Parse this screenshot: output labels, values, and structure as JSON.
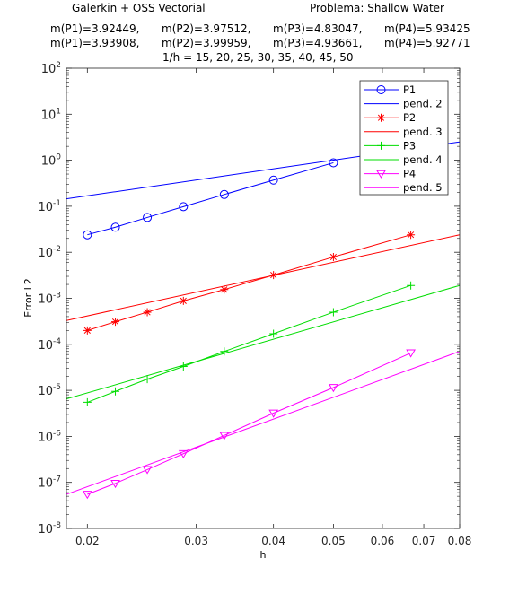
{
  "header": {
    "line1_left": "Galerkin + OSS  Vectorial",
    "line1_right": "Problema: Shallow Water",
    "line2": [
      "m(P1)=3.92449,",
      "m(P2)=3.97512,",
      "m(P3)=4.83047,",
      "m(P4)=5.93425"
    ],
    "line3": [
      "m(P1)=3.93908,",
      "m(P2)=3.99959,",
      "m(P3)=4.93661,",
      "m(P4)=5.92771"
    ],
    "line4": "1/h = 15, 20, 25, 30, 35, 40, 45, 50"
  },
  "chart_data": {
    "type": "line",
    "xscale": "log",
    "yscale": "log",
    "xlabel": "h",
    "ylabel": "Error L2",
    "xlim": [
      0.0185,
      0.08
    ],
    "ylim": [
      1e-08,
      100
    ],
    "xticks": [
      0.02,
      0.03,
      0.04,
      0.05,
      0.06,
      0.07,
      0.08
    ],
    "xtick_labels": [
      "0.02",
      "0.03",
      "0.04",
      "0.05",
      "0.06",
      "0.07",
      "0.08"
    ],
    "yticks": [
      -8,
      -7,
      -6,
      -5,
      -4,
      -3,
      -2,
      -1,
      0,
      1,
      2
    ],
    "grid": false,
    "legend_position": "top-right",
    "series": [
      {
        "name": "P1",
        "color": "#0000ff",
        "marker": "circle",
        "x": [
          0.02,
          0.0222,
          0.025,
          0.0286,
          0.0333,
          0.04,
          0.05
        ],
        "y": [
          0.024,
          0.035,
          0.057,
          0.098,
          0.18,
          0.37,
          0.88
        ]
      },
      {
        "name": "pend. 2",
        "color": "#0000ff",
        "marker": "none",
        "x": [
          0.0185,
          0.08
        ],
        "y": [
          0.145,
          2.5
        ]
      },
      {
        "name": "P2",
        "color": "#ff0000",
        "marker": "asterisk",
        "x": [
          0.02,
          0.0222,
          0.025,
          0.0286,
          0.0333,
          0.04,
          0.05,
          0.0667
        ],
        "y": [
          0.0002,
          0.00031,
          0.0005,
          0.00088,
          0.00155,
          0.0032,
          0.0079,
          0.024
        ]
      },
      {
        "name": "pend. 3",
        "color": "#ff0000",
        "marker": "none",
        "x": [
          0.0185,
          0.08
        ],
        "y": [
          0.00033,
          0.024
        ]
      },
      {
        "name": "P3",
        "color": "#00dd00",
        "marker": "plus",
        "x": [
          0.02,
          0.0222,
          0.025,
          0.0286,
          0.0333,
          0.04,
          0.05,
          0.0667
        ],
        "y": [
          5.5e-06,
          9.5e-06,
          1.75e-05,
          3.3e-05,
          7e-05,
          0.00017,
          0.0005,
          0.0019
        ]
      },
      {
        "name": "pend. 4",
        "color": "#00dd00",
        "marker": "none",
        "x": [
          0.0185,
          0.08
        ],
        "y": [
          6.5e-06,
          0.0019
        ]
      },
      {
        "name": "P4",
        "color": "#ff00ff",
        "marker": "triangle-down",
        "x": [
          0.02,
          0.0222,
          0.025,
          0.0286,
          0.0333,
          0.04,
          0.05,
          0.0667
        ],
        "y": [
          5.5e-08,
          9.5e-08,
          1.9e-07,
          4.2e-07,
          1.05e-06,
          3.2e-06,
          1.15e-05,
          6.5e-05
        ]
      },
      {
        "name": "pend. 5",
        "color": "#ff00ff",
        "marker": "none",
        "x": [
          0.0185,
          0.08
        ],
        "y": [
          5.5e-08,
          7e-05
        ]
      }
    ]
  }
}
